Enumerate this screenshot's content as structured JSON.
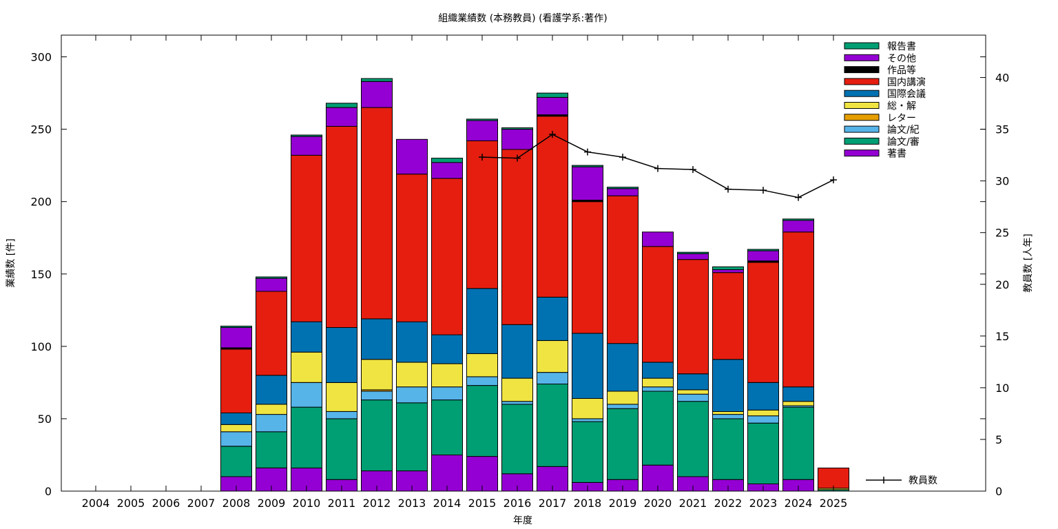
{
  "chart_data": {
    "type": "bar",
    "stacked": true,
    "title": "組織業績数 (本務教員) (看護学系:著作)",
    "xlabel": "年度",
    "ylabel": "業績数 [件]",
    "y2label": "教員数 [人年]",
    "ylim": [
      0,
      315
    ],
    "y2lim": [
      0,
      44.1
    ],
    "yticks": [
      0,
      50,
      100,
      150,
      200,
      250,
      300
    ],
    "y2ticks": [
      0,
      5,
      10,
      15,
      20,
      25,
      30,
      35,
      40
    ],
    "grid": false,
    "legend_position": "top-right",
    "categories": [
      "2004",
      "2005",
      "2006",
      "2007",
      "2008",
      "2009",
      "2010",
      "2011",
      "2012",
      "2013",
      "2014",
      "2015",
      "2016",
      "2017",
      "2018",
      "2019",
      "2020",
      "2021",
      "2022",
      "2023",
      "2024",
      "2025"
    ],
    "series": [
      {
        "name": "著書",
        "color": "#9400d3",
        "values": [
          0,
          0,
          0,
          0,
          10,
          16,
          16,
          8,
          14,
          14,
          25,
          24,
          12,
          17,
          6,
          8,
          18,
          10,
          8,
          5,
          8,
          0
        ]
      },
      {
        "name": "論文/審",
        "color": "#009e73",
        "values": [
          0,
          0,
          0,
          0,
          21,
          25,
          42,
          42,
          49,
          47,
          38,
          49,
          48,
          57,
          42,
          49,
          51,
          52,
          42,
          42,
          50,
          1
        ]
      },
      {
        "name": "論文/紀",
        "color": "#56b4e9",
        "values": [
          0,
          0,
          0,
          0,
          10,
          12,
          17,
          5,
          6,
          11,
          9,
          6,
          2,
          8,
          2,
          3,
          3,
          5,
          3,
          5,
          1,
          0
        ]
      },
      {
        "name": "レター",
        "color": "#e69f00",
        "values": [
          0,
          0,
          0,
          0,
          0,
          0,
          0,
          0,
          1,
          0,
          0,
          0,
          0,
          0,
          0,
          0,
          0,
          0,
          0,
          0,
          0,
          0
        ]
      },
      {
        "name": "総・解",
        "color": "#f0e442",
        "values": [
          0,
          0,
          0,
          0,
          5,
          7,
          21,
          20,
          21,
          17,
          16,
          16,
          16,
          22,
          14,
          9,
          6,
          3,
          2,
          4,
          3,
          1
        ]
      },
      {
        "name": "国際会議",
        "color": "#0072b2",
        "values": [
          0,
          0,
          0,
          0,
          8,
          20,
          21,
          38,
          28,
          28,
          20,
          45,
          37,
          30,
          45,
          33,
          11,
          11,
          36,
          19,
          10,
          0
        ]
      },
      {
        "name": "国内講演",
        "color": "#e51e10",
        "values": [
          0,
          0,
          0,
          0,
          44,
          58,
          115,
          139,
          146,
          102,
          108,
          102,
          121,
          125,
          91,
          102,
          80,
          79,
          60,
          83,
          107,
          14
        ]
      },
      {
        "name": "作品等",
        "color": "#000000",
        "values": [
          0,
          0,
          0,
          0,
          1,
          0,
          0,
          0,
          0,
          0,
          0,
          0,
          0,
          1,
          1,
          0,
          0,
          0,
          0,
          1,
          0,
          0
        ]
      },
      {
        "name": "その他",
        "color": "#9400d3",
        "values": [
          0,
          0,
          0,
          0,
          14,
          9,
          13,
          13,
          18,
          24,
          11,
          14,
          14,
          12,
          23,
          5,
          10,
          4,
          2,
          7,
          8,
          0
        ]
      },
      {
        "name": "報告書",
        "color": "#009e73",
        "values": [
          0,
          0,
          0,
          0,
          1,
          1,
          1,
          3,
          2,
          0,
          3,
          1,
          1,
          3,
          1,
          1,
          0,
          1,
          2,
          1,
          1,
          0
        ]
      }
    ],
    "line": {
      "name": "教員数",
      "axis": "right",
      "color": "#000000",
      "x": [
        "2015",
        "2016",
        "2017",
        "2018",
        "2019",
        "2020",
        "2021",
        "2022",
        "2023",
        "2024",
        "2025"
      ],
      "values": [
        32.3,
        32.2,
        34.5,
        32.8,
        32.3,
        31.2,
        31.1,
        29.2,
        29.1,
        28.4,
        30.1
      ]
    }
  }
}
